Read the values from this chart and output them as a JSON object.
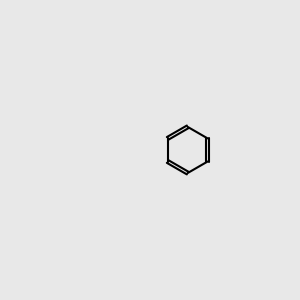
{
  "bg_color": "#e8e8e8",
  "bond_color": "#000000",
  "N_color": "#0000cc",
  "O_color": "#cc0000",
  "H_color": "#5f9ea0",
  "lw": 1.5,
  "lw_double": 1.5
}
